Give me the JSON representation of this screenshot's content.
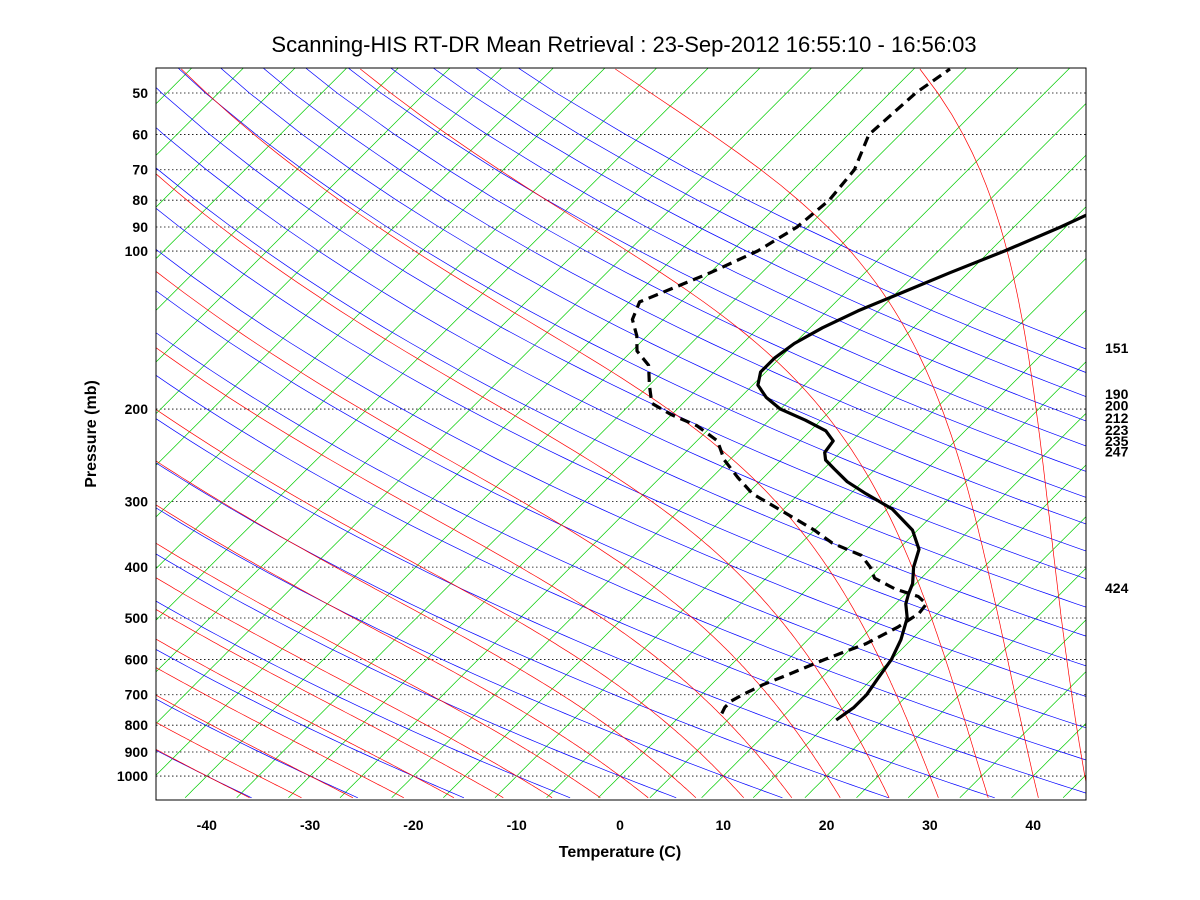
{
  "chart_data": {
    "type": "skew-t",
    "title": "Scanning-HIS RT-DR Mean Retrieval : 23-Sep-2012 16:55:10 - 16:56:03",
    "xlabel": "Temperature (C)",
    "ylabel": "Pressure (mb)",
    "xlim": [
      -45,
      45
    ],
    "plim": [
      1100,
      45
    ],
    "x_ticks": [
      -40,
      -30,
      -20,
      -10,
      0,
      10,
      20,
      30,
      40
    ],
    "x_tick_labels": [
      "-40",
      "-30",
      "-20",
      "-10",
      "0",
      "10",
      "20",
      "30",
      "40"
    ],
    "p_ticks": [
      50,
      60,
      70,
      80,
      90,
      100,
      200,
      300,
      400,
      500,
      600,
      700,
      800,
      900,
      1000
    ],
    "p_tick_labels": [
      "50",
      "60",
      "70",
      "80",
      "90",
      "100",
      "200",
      "300",
      "400",
      "500",
      "600",
      "700",
      "800",
      "900",
      "1000"
    ],
    "right_labels": [
      {
        "text": "151",
        "p": 153
      },
      {
        "text": "190",
        "p": 187
      },
      {
        "text": "200",
        "p": 197
      },
      {
        "text": "212",
        "p": 208
      },
      {
        "text": "223",
        "p": 219
      },
      {
        "text": "235",
        "p": 230
      },
      {
        "text": "247",
        "p": 241
      },
      {
        "text": "424",
        "p": 438
      }
    ],
    "series": [
      {
        "name": "Temperature",
        "style": "solid",
        "color": "#000000",
        "points": [
          [
            782,
            15.5
          ],
          [
            740,
            16.0
          ],
          [
            700,
            16.0
          ],
          [
            650,
            15.5
          ],
          [
            600,
            15.0
          ],
          [
            550,
            14.0
          ],
          [
            500,
            12.5
          ],
          [
            470,
            11.0
          ],
          [
            450,
            10.3
          ],
          [
            430,
            9.7
          ],
          [
            400,
            8.2
          ],
          [
            370,
            7.0
          ],
          [
            340,
            4.5
          ],
          [
            310,
            0.5
          ],
          [
            290,
            -3.5
          ],
          [
            275,
            -6.5
          ],
          [
            260,
            -9.0
          ],
          [
            250,
            -10.7
          ],
          [
            242,
            -11.5
          ],
          [
            230,
            -11.8
          ],
          [
            220,
            -13.5
          ],
          [
            210,
            -16.5
          ],
          [
            200,
            -20.0
          ],
          [
            190,
            -22.5
          ],
          [
            180,
            -24.5
          ],
          [
            170,
            -25.5
          ],
          [
            160,
            -25.5
          ],
          [
            150,
            -25.0
          ],
          [
            140,
            -23.8
          ],
          [
            130,
            -22.0
          ],
          [
            120,
            -19.5
          ],
          [
            110,
            -16.8
          ],
          [
            100,
            -13.6
          ],
          [
            90,
            -10.5
          ],
          [
            80,
            -7.5
          ],
          [
            70,
            -5.8
          ],
          [
            60,
            -2.0
          ],
          [
            50,
            1.0
          ],
          [
            45,
            2.0
          ]
        ]
      },
      {
        "name": "Dewpoint",
        "style": "dashed",
        "color": "#000000",
        "points": [
          [
            760,
            3.8
          ],
          [
            740,
            3.5
          ],
          [
            720,
            3.5
          ],
          [
            700,
            4.0
          ],
          [
            670,
            5.0
          ],
          [
            640,
            6.5
          ],
          [
            600,
            8.5
          ],
          [
            560,
            11.0
          ],
          [
            520,
            12.5
          ],
          [
            490,
            13.2
          ],
          [
            470,
            13.0
          ],
          [
            455,
            11.5
          ],
          [
            440,
            8.5
          ],
          [
            420,
            5.5
          ],
          [
            400,
            4.0
          ],
          [
            380,
            2.0
          ],
          [
            360,
            -2.0
          ],
          [
            340,
            -5.0
          ],
          [
            310,
            -10.5
          ],
          [
            290,
            -14.5
          ],
          [
            270,
            -17.5
          ],
          [
            250,
            -20.5
          ],
          [
            230,
            -23.0
          ],
          [
            215,
            -26.5
          ],
          [
            205,
            -30.0
          ],
          [
            195,
            -33.0
          ],
          [
            180,
            -35.0
          ],
          [
            165,
            -37.0
          ],
          [
            155,
            -39.5
          ],
          [
            145,
            -41.0
          ],
          [
            135,
            -43.0
          ],
          [
            125,
            -44.0
          ],
          [
            110,
            -40.0
          ],
          [
            100,
            -37.5
          ],
          [
            90,
            -36.0
          ],
          [
            80,
            -35.5
          ],
          [
            70,
            -36.0
          ],
          [
            60,
            -38.0
          ],
          [
            50,
            -37.5
          ],
          [
            45,
            -36.5
          ]
        ]
      }
    ],
    "background_lines": {
      "isotherm_color": "#00cc00",
      "dry_adiabat_color": "#0000ff",
      "moist_adiabat_color": "#ff0000",
      "gridlines": "dotted isobars"
    }
  }
}
